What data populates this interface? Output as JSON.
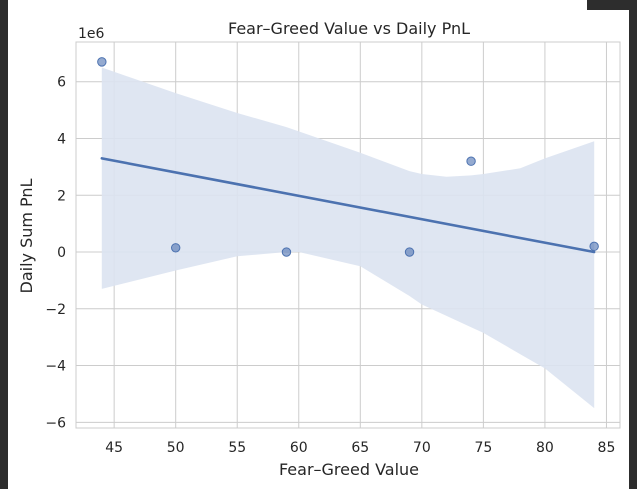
{
  "chart_data": {
    "type": "scatter",
    "title": "Fear–Greed Value vs Daily PnL",
    "xlabel": "Fear–Greed Value",
    "ylabel": "Daily Sum PnL",
    "y_offset_label": "1e6",
    "xlim": [
      41.9,
      86.1
    ],
    "ylim": [
      -6.2,
      7.4
    ],
    "x_ticks": [
      45,
      50,
      55,
      60,
      65,
      70,
      75,
      80,
      85
    ],
    "y_ticks": [
      -6,
      -4,
      -2,
      0,
      2,
      4,
      6
    ],
    "x_tick_labels": [
      "45",
      "50",
      "55",
      "60",
      "65",
      "70",
      "75",
      "80",
      "85"
    ],
    "y_tick_labels": [
      "−6",
      "−4",
      "−2",
      "0",
      "2",
      "4",
      "6"
    ],
    "grid": true,
    "series": [
      {
        "points": [
          {
            "x": 44,
            "y": 6.7
          },
          {
            "x": 50,
            "y": 0.15
          },
          {
            "x": 59,
            "y": 0.0
          },
          {
            "x": 69,
            "y": 0.0
          },
          {
            "x": 74,
            "y": 3.2
          },
          {
            "x": 84,
            "y": 0.2
          }
        ],
        "color": "#4c72b0"
      }
    ],
    "regression_line": {
      "x": [
        44,
        84
      ],
      "y": [
        3.3,
        0.0
      ],
      "color": "#4c72b0"
    },
    "confidence_band": {
      "x": [
        44,
        50,
        55,
        59,
        60,
        65,
        69,
        70,
        72,
        74,
        75,
        78,
        80,
        84
      ],
      "upper": [
        6.5,
        5.6,
        4.9,
        4.4,
        4.25,
        3.5,
        2.85,
        2.75,
        2.65,
        2.7,
        2.75,
        2.95,
        3.3,
        3.9
      ],
      "lower": [
        -1.3,
        -0.65,
        -0.15,
        0.0,
        0.0,
        -0.5,
        -1.55,
        -1.85,
        -2.25,
        -2.65,
        -2.85,
        -3.6,
        -4.1,
        -5.5
      ],
      "color": "#dbe3f1"
    },
    "colors": {
      "background": "#ffffff",
      "grid": "#cccccc",
      "text": "#262626"
    }
  }
}
